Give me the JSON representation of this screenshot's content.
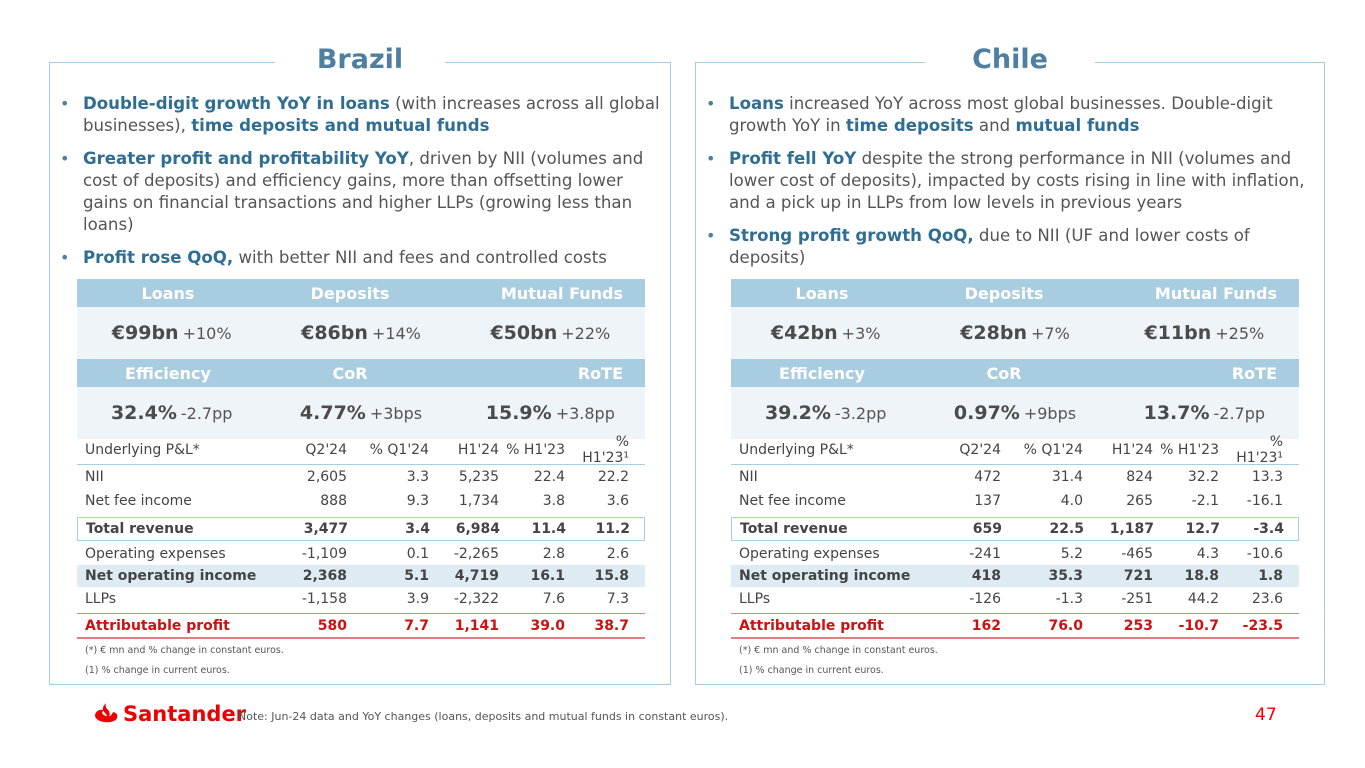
{
  "brazil": {
    "title": "Brazil",
    "bullets": [
      {
        "parts": [
          {
            "t": "Double-digit growth YoY in loans",
            "h": true
          },
          {
            "t": " (with increases across all global businesses), ",
            "h": false
          },
          {
            "t": "time deposits and mutual funds",
            "h": true
          }
        ]
      },
      {
        "parts": [
          {
            "t": "Greater profit and profitability YoY",
            "h": true
          },
          {
            "t": ", driven by NII (volumes and cost of deposits) and efficiency gains, more than offsetting lower gains on financial transactions and higher LLPs (growing less than loans)",
            "h": false
          }
        ]
      },
      {
        "parts": [
          {
            "t": "Profit rose QoQ,",
            "h": true
          },
          {
            "t": " with better NII and fees and controlled costs",
            "h": false
          }
        ]
      }
    ],
    "kpi1": {
      "headers": [
        "Loans",
        "Deposits",
        "Mutual Funds"
      ],
      "values": [
        {
          "big": "€99bn",
          "chg": "+10%"
        },
        {
          "big": "€86bn",
          "chg": "+14%"
        },
        {
          "big": "€50bn",
          "chg": "+22%"
        }
      ]
    },
    "kpi2": {
      "headers": [
        "Efficiency",
        "CoR",
        "RoTE"
      ],
      "values": [
        {
          "big": "32.4%",
          "chg": "-2.7pp"
        },
        {
          "big": "4.77%",
          "chg": "+3bps"
        },
        {
          "big": "15.9%",
          "chg": "+3.8pp"
        }
      ]
    },
    "pl": {
      "headers": [
        "Underlying P&L*",
        "Q2'24",
        "% Q1'24",
        "H1'24",
        "% H1'23",
        "% H1'23¹"
      ],
      "rows": [
        {
          "label": "NII",
          "vals": [
            "2,605",
            "3.3",
            "5,235",
            "22.4",
            "22.2"
          ],
          "style": ""
        },
        {
          "label": "Net fee income",
          "vals": [
            "888",
            "9.3",
            "1,734",
            "3.8",
            "3.6"
          ],
          "style": ""
        },
        {
          "label": "Total revenue",
          "vals": [
            "3,477",
            "3.4",
            "6,984",
            "11.4",
            "11.2"
          ],
          "style": "total"
        },
        {
          "label": "Operating expenses",
          "vals": [
            "-1,109",
            "0.1",
            "-2,265",
            "2.8",
            "2.6"
          ],
          "style": "slim"
        },
        {
          "label": "Net operating income",
          "vals": [
            "2,368",
            "5.1",
            "4,719",
            "16.1",
            "15.8"
          ],
          "style": "shade"
        },
        {
          "label": "LLPs",
          "vals": [
            "-1,158",
            "3.9",
            "-2,322",
            "7.6",
            "7.3"
          ],
          "style": ""
        },
        {
          "label": "Attributable profit",
          "vals": [
            "580",
            "7.7",
            "1,141",
            "39.0",
            "38.7"
          ],
          "style": "profit"
        }
      ],
      "note1": "(*) € mn and % change in constant euros.",
      "note2": "(1)  % change in current euros."
    }
  },
  "chile": {
    "title": "Chile",
    "bullets": [
      {
        "parts": [
          {
            "t": "Loans",
            "h": true
          },
          {
            "t": " increased YoY across most global businesses. Double-digit growth YoY in ",
            "h": false
          },
          {
            "t": "time deposits",
            "h": true
          },
          {
            "t": " and ",
            "h": false
          },
          {
            "t": "mutual funds",
            "h": true
          }
        ]
      },
      {
        "parts": [
          {
            "t": "Profit fell YoY",
            "h": true
          },
          {
            "t": " despite the strong performance in NII (volumes and lower cost of deposits), impacted by costs rising in line with inflation, and a pick up in LLPs from low levels in previous years",
            "h": false
          }
        ]
      },
      {
        "parts": [
          {
            "t": "Strong profit growth QoQ,",
            "h": true
          },
          {
            "t": " due to NII (UF and lower costs of deposits)",
            "h": false
          }
        ]
      }
    ],
    "kpi1": {
      "headers": [
        "Loans",
        "Deposits",
        "Mutual Funds"
      ],
      "values": [
        {
          "big": "€42bn",
          "chg": "+3%"
        },
        {
          "big": "€28bn",
          "chg": "+7%"
        },
        {
          "big": "€11bn",
          "chg": "+25%"
        }
      ]
    },
    "kpi2": {
      "headers": [
        "Efficiency",
        "CoR",
        "RoTE"
      ],
      "values": [
        {
          "big": "39.2%",
          "chg": "-3.2pp"
        },
        {
          "big": "0.97%",
          "chg": "+9bps"
        },
        {
          "big": "13.7%",
          "chg": "-2.7pp"
        }
      ]
    },
    "pl": {
      "headers": [
        "Underlying P&L*",
        "Q2'24",
        "% Q1'24",
        "H1'24",
        "% H1'23",
        "% H1'23¹"
      ],
      "rows": [
        {
          "label": "NII",
          "vals": [
            "472",
            "31.4",
            "824",
            "32.2",
            "13.3"
          ],
          "style": ""
        },
        {
          "label": "Net fee income",
          "vals": [
            "137",
            "4.0",
            "265",
            "-2.1",
            "-16.1"
          ],
          "style": ""
        },
        {
          "label": "Total revenue",
          "vals": [
            "659",
            "22.5",
            "1,187",
            "12.7",
            "-3.4"
          ],
          "style": "total"
        },
        {
          "label": "Operating expenses",
          "vals": [
            "-241",
            "5.2",
            "-465",
            "4.3",
            "-10.6"
          ],
          "style": "slim"
        },
        {
          "label": "Net operating income",
          "vals": [
            "418",
            "35.3",
            "721",
            "18.8",
            "1.8"
          ],
          "style": "shade"
        },
        {
          "label": "LLPs",
          "vals": [
            "-126",
            "-1.3",
            "-251",
            "44.2",
            "23.6"
          ],
          "style": ""
        },
        {
          "label": "Attributable profit",
          "vals": [
            "162",
            "76.0",
            "253",
            "-10.7",
            "-23.5"
          ],
          "style": "profit"
        }
      ],
      "note1": "(*) € mn and % change in constant euros.",
      "note2": "(1)  % change in current euros."
    }
  },
  "footer": {
    "brand": "Santander",
    "note": "Note: Jun-24 data and YoY changes (loans, deposits and mutual funds in constant euros).",
    "page": "47"
  }
}
